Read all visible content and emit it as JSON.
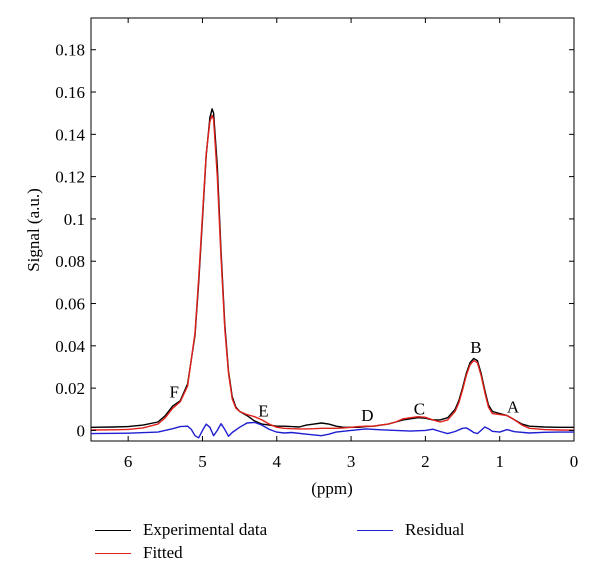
{
  "chart_data": {
    "type": "line",
    "title": "",
    "xlabel": "(ppm)",
    "ylabel": "Signal (a.u.)",
    "xlim": [
      6.5,
      0
    ],
    "ylim": [
      -0.005,
      0.195
    ],
    "x_reversed": true,
    "grid": false,
    "x_ticks": [
      6,
      5,
      4,
      3,
      2,
      1,
      0
    ],
    "y_ticks": [
      0,
      0.02,
      0.04,
      0.06,
      0.08,
      0.1,
      0.12,
      0.14,
      0.16,
      0.18
    ],
    "y_tick_labels": [
      "0",
      "0.02",
      "0.04",
      "0.06",
      "0.08",
      "0.1",
      "0.12",
      "0.14",
      "0.16",
      "0.18"
    ],
    "legend_position": "bottom",
    "annotations": [
      {
        "text": "F",
        "x": 5.38,
        "y": 0.0155
      },
      {
        "text": "E",
        "x": 4.18,
        "y": 0.0065
      },
      {
        "text": "D",
        "x": 2.78,
        "y": 0.0045
      },
      {
        "text": "C",
        "x": 2.08,
        "y": 0.0075
      },
      {
        "text": "B",
        "x": 1.32,
        "y": 0.0365
      },
      {
        "text": "A",
        "x": 0.82,
        "y": 0.0085
      }
    ],
    "series": [
      {
        "name": "Experimental data",
        "color": "#000000",
        "x": [
          6.5,
          6.2,
          6.0,
          5.8,
          5.6,
          5.5,
          5.4,
          5.3,
          5.2,
          5.1,
          5.05,
          5.0,
          4.95,
          4.9,
          4.87,
          4.85,
          4.8,
          4.75,
          4.7,
          4.65,
          4.6,
          4.55,
          4.5,
          4.4,
          4.3,
          4.2,
          4.1,
          4.0,
          3.9,
          3.8,
          3.7,
          3.6,
          3.5,
          3.4,
          3.3,
          3.2,
          3.1,
          3.0,
          2.9,
          2.8,
          2.7,
          2.6,
          2.5,
          2.4,
          2.3,
          2.2,
          2.1,
          2.0,
          1.9,
          1.8,
          1.7,
          1.6,
          1.55,
          1.5,
          1.45,
          1.4,
          1.35,
          1.3,
          1.25,
          1.2,
          1.15,
          1.1,
          1.0,
          0.9,
          0.8,
          0.7,
          0.6,
          0.4,
          0.2,
          0.0
        ],
        "y": [
          0.0015,
          0.0016,
          0.0018,
          0.0025,
          0.004,
          0.007,
          0.0115,
          0.014,
          0.022,
          0.045,
          0.07,
          0.1,
          0.13,
          0.148,
          0.152,
          0.15,
          0.125,
          0.085,
          0.05,
          0.028,
          0.016,
          0.011,
          0.009,
          0.007,
          0.0045,
          0.003,
          0.0025,
          0.002,
          0.002,
          0.0018,
          0.0016,
          0.0025,
          0.003,
          0.0035,
          0.003,
          0.002,
          0.0015,
          0.0015,
          0.0015,
          0.0018,
          0.002,
          0.0025,
          0.003,
          0.004,
          0.005,
          0.0055,
          0.006,
          0.0058,
          0.005,
          0.005,
          0.006,
          0.01,
          0.014,
          0.02,
          0.027,
          0.032,
          0.034,
          0.033,
          0.027,
          0.019,
          0.012,
          0.009,
          0.008,
          0.007,
          0.005,
          0.003,
          0.002,
          0.0016,
          0.0015,
          0.0015
        ]
      },
      {
        "name": "Fitted",
        "color": "#e0201b",
        "x": [
          6.5,
          6.2,
          6.0,
          5.8,
          5.6,
          5.5,
          5.4,
          5.3,
          5.2,
          5.1,
          5.05,
          5.0,
          4.95,
          4.9,
          4.87,
          4.85,
          4.8,
          4.75,
          4.7,
          4.65,
          4.6,
          4.55,
          4.5,
          4.4,
          4.3,
          4.2,
          4.1,
          4.0,
          3.9,
          3.8,
          3.7,
          3.6,
          3.5,
          3.4,
          3.3,
          3.2,
          3.1,
          3.0,
          2.9,
          2.8,
          2.7,
          2.6,
          2.5,
          2.4,
          2.3,
          2.2,
          2.1,
          2.0,
          1.9,
          1.8,
          1.7,
          1.6,
          1.55,
          1.5,
          1.45,
          1.4,
          1.35,
          1.3,
          1.25,
          1.2,
          1.15,
          1.1,
          1.0,
          0.9,
          0.8,
          0.7,
          0.6,
          0.4,
          0.2,
          0.0
        ],
        "y": [
          0.0002,
          0.0003,
          0.0005,
          0.0012,
          0.003,
          0.006,
          0.0105,
          0.0135,
          0.021,
          0.046,
          0.072,
          0.102,
          0.131,
          0.146,
          0.149,
          0.147,
          0.12,
          0.082,
          0.048,
          0.027,
          0.015,
          0.0105,
          0.009,
          0.0075,
          0.0065,
          0.005,
          0.003,
          0.0015,
          0.001,
          0.0008,
          0.0007,
          0.0007,
          0.0008,
          0.001,
          0.001,
          0.001,
          0.0012,
          0.0015,
          0.0018,
          0.002,
          0.002,
          0.0025,
          0.003,
          0.004,
          0.0055,
          0.006,
          0.0065,
          0.0062,
          0.005,
          0.004,
          0.005,
          0.009,
          0.013,
          0.019,
          0.026,
          0.031,
          0.033,
          0.032,
          0.026,
          0.018,
          0.011,
          0.008,
          0.0075,
          0.007,
          0.005,
          0.0025,
          0.001,
          0.0004,
          0.0002,
          0.0001
        ]
      },
      {
        "name": "Residual",
        "color": "#1f1fd1",
        "x": [
          6.5,
          6.0,
          5.6,
          5.4,
          5.3,
          5.2,
          5.15,
          5.1,
          5.05,
          5.0,
          4.95,
          4.9,
          4.85,
          4.8,
          4.75,
          4.7,
          4.65,
          4.6,
          4.5,
          4.4,
          4.3,
          4.2,
          4.1,
          4.0,
          3.9,
          3.8,
          3.6,
          3.4,
          3.3,
          3.2,
          3.0,
          2.8,
          2.6,
          2.4,
          2.2,
          2.0,
          1.9,
          1.8,
          1.7,
          1.6,
          1.5,
          1.45,
          1.4,
          1.35,
          1.3,
          1.25,
          1.2,
          1.15,
          1.1,
          1.0,
          0.9,
          0.8,
          0.6,
          0.4,
          0.2,
          0.0
        ],
        "y": [
          -0.0015,
          -0.0013,
          -0.0008,
          0.0008,
          0.0018,
          0.002,
          0.0005,
          -0.0025,
          -0.0035,
          0.0,
          0.003,
          0.0015,
          -0.0025,
          0.0,
          0.0032,
          0.0005,
          -0.0028,
          -0.001,
          0.0015,
          0.0035,
          0.0038,
          0.0025,
          0.0005,
          -0.0008,
          -0.0012,
          -0.001,
          -0.0018,
          -0.0025,
          -0.0018,
          -0.0008,
          0.0,
          0.0007,
          0.0003,
          0.0,
          -0.0003,
          0.0,
          0.0006,
          -0.0005,
          -0.0015,
          -0.0005,
          0.001,
          0.0012,
          0.0002,
          -0.001,
          -0.0015,
          0.0,
          0.0016,
          0.0008,
          -0.0004,
          -0.0008,
          0.0004,
          -0.0006,
          -0.0012,
          -0.0009,
          -0.0008,
          -0.0008
        ]
      }
    ]
  }
}
